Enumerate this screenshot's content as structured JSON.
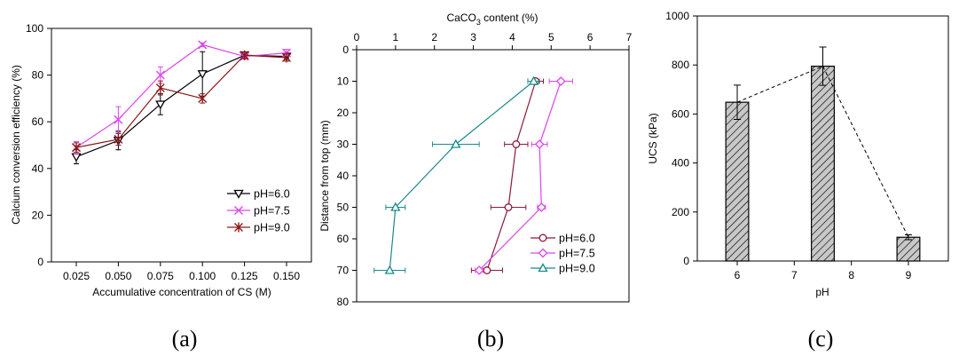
{
  "chart_data": [
    {
      "type": "line",
      "panel_label": "(a)",
      "xlabel": "Accumulative  concentration of CS (M)",
      "ylabel": "Calcium conversion efficiency (%)",
      "x": [
        "0.025",
        "0.050",
        "0.075",
        "0.100",
        "0.125",
        "0.150"
      ],
      "ylim": [
        0,
        100
      ],
      "yticks": [
        "0",
        "20",
        "40",
        "60",
        "80",
        "100"
      ],
      "grid": false,
      "legend_position": "bottom-right",
      "series": [
        {
          "name": "pH=6.0",
          "color": "#000000",
          "marker": "triangle-down",
          "values": [
            45,
            52,
            67.5,
            80.5,
            88.5,
            88
          ],
          "errors": [
            3,
            4,
            4.5,
            9.5,
            1,
            1
          ]
        },
        {
          "name": "pH=7.5",
          "color": "#dd44ee",
          "marker": "x",
          "values": [
            49,
            61,
            80,
            93,
            88,
            89.5
          ],
          "errors": [
            2.5,
            5.5,
            3.5,
            0.8,
            1,
            1.5
          ]
        },
        {
          "name": "pH=9.0",
          "color": "#8b1a1a",
          "marker": "star",
          "values": [
            49,
            52.5,
            74.5,
            70,
            88.5,
            87.5
          ],
          "errors": [
            2,
            2.5,
            3,
            2,
            1.5,
            1.5
          ]
        }
      ]
    },
    {
      "type": "line",
      "panel_label": "(b)",
      "xlabel_prefix": "CaCO",
      "xlabel_sub": "3",
      "xlabel_suffix": " content (%)",
      "ylabel": "Distance from top (mm)",
      "xlim": [
        0,
        7
      ],
      "xticks": [
        "0",
        "1",
        "2",
        "3",
        "4",
        "5",
        "6",
        "7"
      ],
      "ylim": [
        0,
        80
      ],
      "yticks": [
        "0",
        "10",
        "20",
        "30",
        "40",
        "50",
        "60",
        "70",
        "80"
      ],
      "y_inverted": true,
      "grid": false,
      "legend_position": "bottom-right",
      "y": [
        10,
        30,
        50,
        70
      ],
      "series": [
        {
          "name": "pH=6.0",
          "color": "#8b1a3a",
          "marker": "circle",
          "values": [
            4.6,
            4.1,
            3.9,
            3.35
          ],
          "errors": [
            0.2,
            0.3,
            0.45,
            0.4
          ]
        },
        {
          "name": "pH=7.5",
          "color": "#dd44ee",
          "marker": "diamond",
          "values": [
            5.25,
            4.7,
            4.75,
            3.15
          ],
          "errors": [
            0.3,
            0.2,
            0.1,
            0.1
          ]
        },
        {
          "name": "pH=9.0",
          "color": "#1a8a8a",
          "marker": "triangle-up",
          "values": [
            4.55,
            2.55,
            1.0,
            0.85
          ],
          "errors": [
            0.15,
            0.6,
            0.25,
            0.4
          ]
        }
      ]
    },
    {
      "type": "bar",
      "panel_label": "(c)",
      "xlabel": "pH",
      "ylabel": "UCS (kPa)",
      "xlim": [
        5.3,
        9.7
      ],
      "xticks": [
        "6",
        "7",
        "8",
        "9"
      ],
      "ylim": [
        0,
        1000
      ],
      "yticks": [
        "0",
        "200",
        "400",
        "600",
        "800",
        "1000"
      ],
      "grid": false,
      "categories": [
        "6",
        "7.5",
        "9"
      ],
      "category_positions": [
        6,
        7.5,
        9
      ],
      "values": [
        648,
        795,
        97
      ],
      "errors": [
        70,
        78,
        10
      ],
      "bar_fill": "#c8c8c8",
      "bar_hatch": "diagonal",
      "trend_line": "dashed"
    }
  ]
}
